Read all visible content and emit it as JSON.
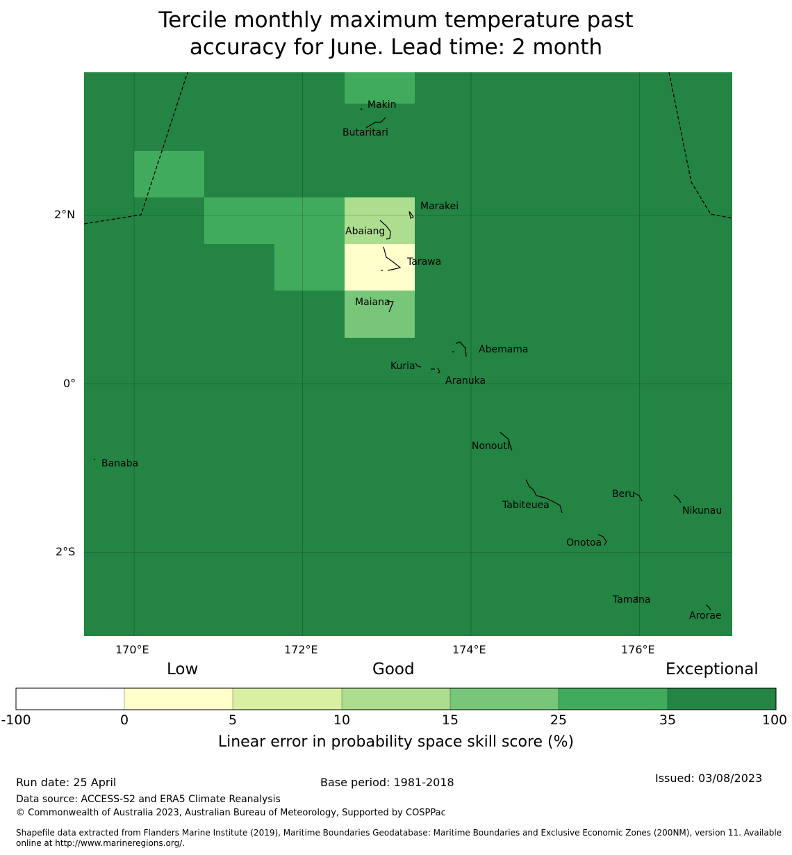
{
  "title_line1": "Tercile monthly maximum temperature past",
  "title_line2": "accuracy for June. Lead time: 2 month",
  "map": {
    "lon_labels": [
      "170°E",
      "172°E",
      "174°E",
      "176°E"
    ],
    "lat_labels": [
      "2°N",
      "0°",
      "2°S"
    ],
    "grid_values": [
      [
        35,
        35,
        35,
        25,
        35,
        35,
        35,
        35,
        35
      ],
      [
        35,
        25,
        35,
        35,
        35,
        35,
        35,
        35,
        35
      ],
      [
        35,
        35,
        25,
        25,
        10,
        35,
        35,
        35,
        100
      ],
      [
        100,
        100,
        35,
        25,
        0,
        100,
        100,
        100,
        100
      ],
      [
        100,
        100,
        100,
        35,
        15,
        100,
        100,
        100,
        100
      ],
      [
        100,
        100,
        100,
        100,
        100,
        100,
        100,
        100,
        100
      ]
    ],
    "places": [
      {
        "name": "Makin",
        "lon": 172.95,
        "lat": 3.35
      },
      {
        "name": "Butaritari",
        "lon": 172.8,
        "lat": 3.0
      },
      {
        "name": "Marakei",
        "lon": 173.3,
        "lat": 2.0
      },
      {
        "name": "Abaiang",
        "lon": 172.95,
        "lat": 1.8
      },
      {
        "name": "Tarawa",
        "lon": 173.1,
        "lat": 1.4
      },
      {
        "name": "Maiana",
        "lon": 173.0,
        "lat": 0.9
      },
      {
        "name": "Abemama",
        "lon": 173.9,
        "lat": 0.4
      },
      {
        "name": "Kuria",
        "lon": 173.4,
        "lat": 0.2
      },
      {
        "name": "Aranuka",
        "lon": 173.6,
        "lat": 0.15
      },
      {
        "name": "Banaba",
        "lon": 169.5,
        "lat": -0.85
      },
      {
        "name": "Nonouti",
        "lon": 174.4,
        "lat": -0.65
      },
      {
        "name": "Tabiteuea",
        "lon": 174.8,
        "lat": -1.35
      },
      {
        "name": "Beru",
        "lon": 175.98,
        "lat": -1.33
      },
      {
        "name": "Nikunau",
        "lon": 176.45,
        "lat": -1.35
      },
      {
        "name": "Onotoa",
        "lon": 175.55,
        "lat": -1.8
      },
      {
        "name": "Tamana",
        "lon": 175.97,
        "lat": -2.5
      },
      {
        "name": "Arorae",
        "lon": 176.82,
        "lat": -2.65
      }
    ]
  },
  "colorbar": {
    "category_labels": [
      "Low",
      "Good",
      "Exceptional"
    ],
    "ticks": [
      "-100",
      "0",
      "5",
      "10",
      "15",
      "25",
      "35",
      "100"
    ],
    "colors": [
      "#ffffff",
      "#ffffcc",
      "#d9f0a3",
      "#addd8e",
      "#78c679",
      "#41ab5d",
      "#238443"
    ],
    "title": "Linear error in probability space skill score (%)"
  },
  "footer": {
    "run_date": "Run date: 25 April",
    "base_period": "Base period: 1981-2018",
    "issued": "Issued: 03/08/2023",
    "data_source": "Data source: ACCESS-S2 and ERA5 Climate Reanalysis",
    "copyright": "© Commonwealth of Australia 2023, Australian Bureau of Meteorology, Supported by COSPPac",
    "shapefile_line1": "Shapefile data extracted from Flanders Marine Institute (2019), Maritime Boundaries Geodatabase: Maritime Boundaries and Exclusive Economic Zones (200NM), version 11. Available",
    "shapefile_line2": "online at http://www.marineregions.org/."
  }
}
